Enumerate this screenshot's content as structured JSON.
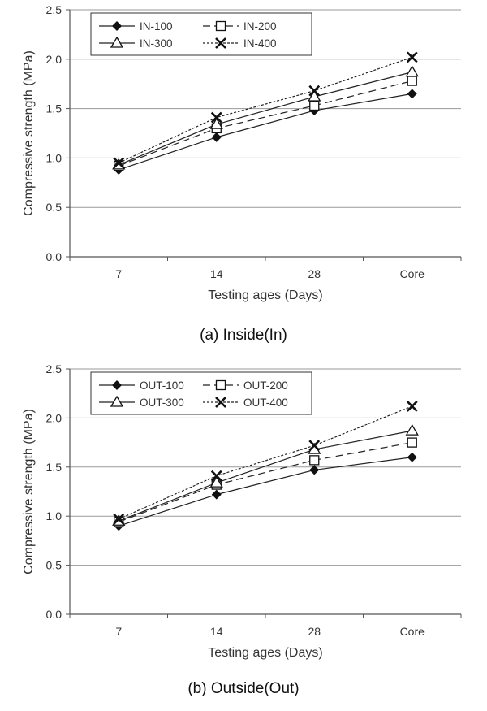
{
  "chart_data": [
    {
      "type": "line",
      "caption": "(a)  Inside(In)",
      "xlabel": "Testing ages (Days)",
      "ylabel": "Compressive strength (MPa)",
      "categories": [
        "7",
        "14",
        "28",
        "Core"
      ],
      "ylim": [
        0,
        2.5
      ],
      "yticks": [
        "0.0",
        "0.5",
        "1.0",
        "1.5",
        "2.0",
        "2.5"
      ],
      "grid": "horizontal",
      "legend_position": "top-left",
      "series": [
        {
          "name": "IN-100",
          "values": [
            0.88,
            1.21,
            1.48,
            1.65
          ],
          "marker": "diamond",
          "dash": "solid"
        },
        {
          "name": "IN-200",
          "values": [
            0.92,
            1.3,
            1.53,
            1.78
          ],
          "marker": "square",
          "dash": "dashed"
        },
        {
          "name": "IN-300",
          "values": [
            0.93,
            1.34,
            1.62,
            1.87
          ],
          "marker": "triangle",
          "dash": "solid"
        },
        {
          "name": "IN-400",
          "values": [
            0.95,
            1.41,
            1.68,
            2.02
          ],
          "marker": "x",
          "dash": "dotted"
        }
      ]
    },
    {
      "type": "line",
      "caption": "(b)  Outside(Out)",
      "xlabel": "Testing ages (Days)",
      "ylabel": "Compressive strength (MPa)",
      "categories": [
        "7",
        "14",
        "28",
        "Core"
      ],
      "ylim": [
        0,
        2.5
      ],
      "yticks": [
        "0.0",
        "0.5",
        "1.0",
        "1.5",
        "2.0",
        "2.5"
      ],
      "grid": "horizontal",
      "legend_position": "top-left",
      "series": [
        {
          "name": "OUT-100",
          "values": [
            0.9,
            1.22,
            1.47,
            1.6
          ],
          "marker": "diamond",
          "dash": "solid"
        },
        {
          "name": "OUT-200",
          "values": [
            0.94,
            1.32,
            1.57,
            1.75
          ],
          "marker": "square",
          "dash": "dashed"
        },
        {
          "name": "OUT-300",
          "values": [
            0.95,
            1.34,
            1.68,
            1.87
          ],
          "marker": "triangle",
          "dash": "solid"
        },
        {
          "name": "OUT-400",
          "values": [
            0.97,
            1.41,
            1.72,
            2.12
          ],
          "marker": "x",
          "dash": "dotted"
        }
      ]
    }
  ]
}
